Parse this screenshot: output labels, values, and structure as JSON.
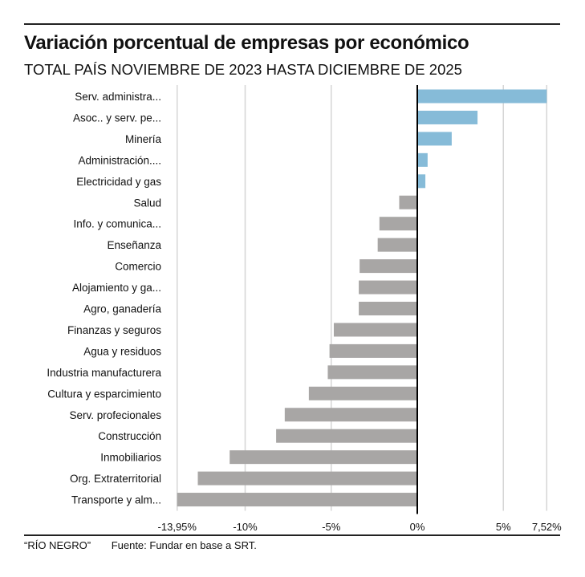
{
  "title": "Variación porcentual de empresas por económico",
  "subtitle": "TOTAL PAÍS NOVIEMBRE DE 2023 HASTA DICIEMBRE DE 2025",
  "footer": {
    "brand": "“RÍO NEGRO”",
    "source": "Fuente: Fundar en base a SRT."
  },
  "chart_data": {
    "type": "bar",
    "orientation": "horizontal",
    "title": "Variación porcentual de empresas por económico",
    "subtitle": "TOTAL PAÍS NOVIEMBRE DE 2023 HASTA DICIEMBRE DE 2025",
    "categories": [
      "Serv. administra...",
      "Asoc.. y serv. pe...",
      "Minería",
      "Administración....",
      "Electricidad y gas",
      "Salud",
      "Info. y comunica...",
      "Enseñanza",
      "Comercio",
      "Alojamiento y ga...",
      "Agro, ganadería",
      "Finanzas y seguros",
      "Agua y residuos",
      "Industria manufacturera",
      "Cultura y esparcimiento",
      "Serv. profecionales",
      "Construcción",
      "Inmobiliarios",
      "Org. Extraterritorial",
      "Transporte y alm..."
    ],
    "values": [
      7.52,
      3.5,
      2.0,
      0.6,
      0.47,
      -1.05,
      -2.2,
      -2.3,
      -3.35,
      -3.4,
      -3.4,
      -4.85,
      -5.1,
      -5.2,
      -6.3,
      -7.7,
      -8.2,
      -10.9,
      -12.75,
      -13.95
    ],
    "xlim": [
      -13.95,
      7.52
    ],
    "xticks": [
      -13.95,
      -10,
      -5,
      0,
      5,
      7.52
    ],
    "xtick_labels": [
      "-13,95%",
      "-10%",
      "-5%",
      "0%",
      "5%",
      "7,52%"
    ],
    "grid": true,
    "colors": {
      "positive": "#86bbd8",
      "negative": "#a8a6a5"
    }
  }
}
